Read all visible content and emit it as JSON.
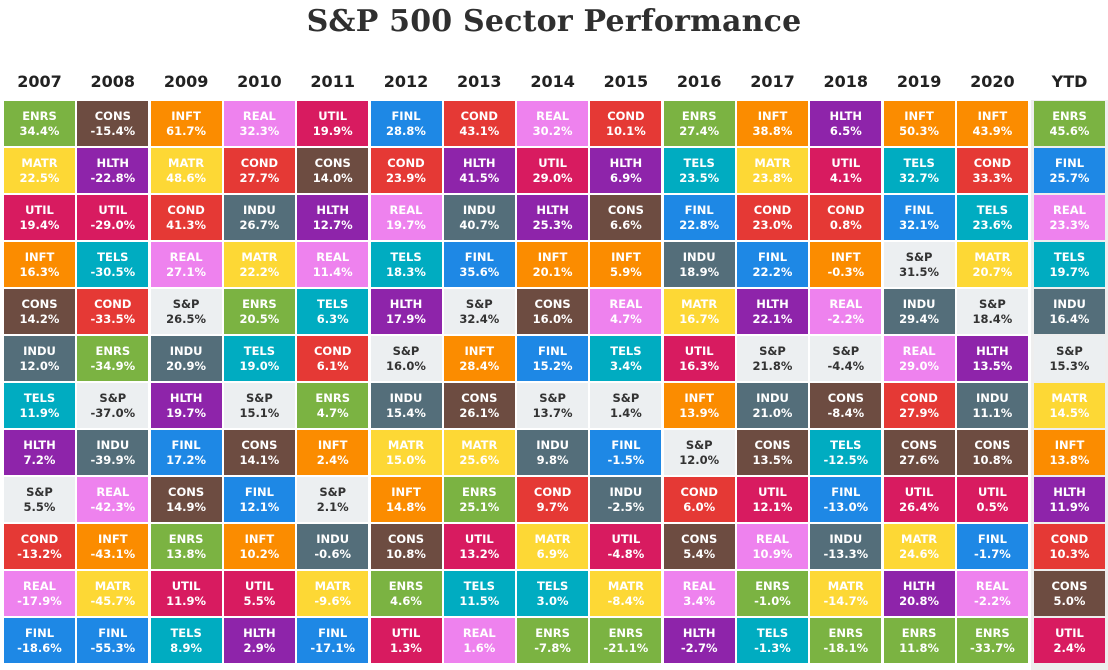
{
  "title": "S&P 500 Sector Performance",
  "colors": {
    "ENRS": "#7bb342",
    "CONS": "#6d4c41",
    "INFT": "#fb8c00",
    "REAL": "#ee82ee",
    "UTIL": "#d81b60",
    "FINL": "#1e88e5",
    "COND": "#e53935",
    "HLTH": "#8e24aa",
    "MATR": "#fdd835",
    "INDU": "#546e7a",
    "TELS": "#00acc1",
    "S&P": "#eceff1"
  },
  "chart_data": {
    "type": "table",
    "columns": [
      {
        "year": "2007",
        "cells": [
          {
            "sector": "ENRS",
            "value": "34.4%"
          },
          {
            "sector": "MATR",
            "value": "22.5%"
          },
          {
            "sector": "UTIL",
            "value": "19.4%"
          },
          {
            "sector": "INFT",
            "value": "16.3%"
          },
          {
            "sector": "CONS",
            "value": "14.2%"
          },
          {
            "sector": "INDU",
            "value": "12.0%"
          },
          {
            "sector": "TELS",
            "value": "11.9%"
          },
          {
            "sector": "HLTH",
            "value": "7.2%"
          },
          {
            "sector": "S&P",
            "value": "5.5%"
          },
          {
            "sector": "COND",
            "value": "-13.2%"
          },
          {
            "sector": "REAL",
            "value": "-17.9%"
          },
          {
            "sector": "FINL",
            "value": "-18.6%"
          }
        ]
      },
      {
        "year": "2008",
        "cells": [
          {
            "sector": "CONS",
            "value": "-15.4%"
          },
          {
            "sector": "HLTH",
            "value": "-22.8%"
          },
          {
            "sector": "UTIL",
            "value": "-29.0%"
          },
          {
            "sector": "TELS",
            "value": "-30.5%"
          },
          {
            "sector": "COND",
            "value": "-33.5%"
          },
          {
            "sector": "ENRS",
            "value": "-34.9%"
          },
          {
            "sector": "S&P",
            "value": "-37.0%"
          },
          {
            "sector": "INDU",
            "value": "-39.9%"
          },
          {
            "sector": "REAL",
            "value": "-42.3%"
          },
          {
            "sector": "INFT",
            "value": "-43.1%"
          },
          {
            "sector": "MATR",
            "value": "-45.7%"
          },
          {
            "sector": "FINL",
            "value": "-55.3%"
          }
        ]
      },
      {
        "year": "2009",
        "cells": [
          {
            "sector": "INFT",
            "value": "61.7%"
          },
          {
            "sector": "MATR",
            "value": "48.6%"
          },
          {
            "sector": "COND",
            "value": "41.3%"
          },
          {
            "sector": "REAL",
            "value": "27.1%"
          },
          {
            "sector": "S&P",
            "value": "26.5%"
          },
          {
            "sector": "INDU",
            "value": "20.9%"
          },
          {
            "sector": "HLTH",
            "value": "19.7%"
          },
          {
            "sector": "FINL",
            "value": "17.2%"
          },
          {
            "sector": "CONS",
            "value": "14.9%"
          },
          {
            "sector": "ENRS",
            "value": "13.8%"
          },
          {
            "sector": "UTIL",
            "value": "11.9%"
          },
          {
            "sector": "TELS",
            "value": "8.9%"
          }
        ]
      },
      {
        "year": "2010",
        "cells": [
          {
            "sector": "REAL",
            "value": "32.3%"
          },
          {
            "sector": "COND",
            "value": "27.7%"
          },
          {
            "sector": "INDU",
            "value": "26.7%"
          },
          {
            "sector": "MATR",
            "value": "22.2%"
          },
          {
            "sector": "ENRS",
            "value": "20.5%"
          },
          {
            "sector": "TELS",
            "value": "19.0%"
          },
          {
            "sector": "S&P",
            "value": "15.1%"
          },
          {
            "sector": "CONS",
            "value": "14.1%"
          },
          {
            "sector": "FINL",
            "value": "12.1%"
          },
          {
            "sector": "INFT",
            "value": "10.2%"
          },
          {
            "sector": "UTIL",
            "value": "5.5%"
          },
          {
            "sector": "HLTH",
            "value": "2.9%"
          }
        ]
      },
      {
        "year": "2011",
        "cells": [
          {
            "sector": "UTIL",
            "value": "19.9%"
          },
          {
            "sector": "CONS",
            "value": "14.0%"
          },
          {
            "sector": "HLTH",
            "value": "12.7%"
          },
          {
            "sector": "REAL",
            "value": "11.4%"
          },
          {
            "sector": "TELS",
            "value": "6.3%"
          },
          {
            "sector": "COND",
            "value": "6.1%"
          },
          {
            "sector": "ENRS",
            "value": "4.7%"
          },
          {
            "sector": "INFT",
            "value": "2.4%"
          },
          {
            "sector": "S&P",
            "value": "2.1%"
          },
          {
            "sector": "INDU",
            "value": "-0.6%"
          },
          {
            "sector": "MATR",
            "value": "-9.6%"
          },
          {
            "sector": "FINL",
            "value": "-17.1%"
          }
        ]
      },
      {
        "year": "2012",
        "cells": [
          {
            "sector": "FINL",
            "value": "28.8%"
          },
          {
            "sector": "COND",
            "value": "23.9%"
          },
          {
            "sector": "REAL",
            "value": "19.7%"
          },
          {
            "sector": "TELS",
            "value": "18.3%"
          },
          {
            "sector": "HLTH",
            "value": "17.9%"
          },
          {
            "sector": "S&P",
            "value": "16.0%"
          },
          {
            "sector": "INDU",
            "value": "15.4%"
          },
          {
            "sector": "MATR",
            "value": "15.0%"
          },
          {
            "sector": "INFT",
            "value": "14.8%"
          },
          {
            "sector": "CONS",
            "value": "10.8%"
          },
          {
            "sector": "ENRS",
            "value": "4.6%"
          },
          {
            "sector": "UTIL",
            "value": "1.3%"
          }
        ]
      },
      {
        "year": "2013",
        "cells": [
          {
            "sector": "COND",
            "value": "43.1%"
          },
          {
            "sector": "HLTH",
            "value": "41.5%"
          },
          {
            "sector": "INDU",
            "value": "40.7%"
          },
          {
            "sector": "FINL",
            "value": "35.6%"
          },
          {
            "sector": "S&P",
            "value": "32.4%"
          },
          {
            "sector": "INFT",
            "value": "28.4%"
          },
          {
            "sector": "CONS",
            "value": "26.1%"
          },
          {
            "sector": "MATR",
            "value": "25.6%"
          },
          {
            "sector": "ENRS",
            "value": "25.1%"
          },
          {
            "sector": "UTIL",
            "value": "13.2%"
          },
          {
            "sector": "TELS",
            "value": "11.5%"
          },
          {
            "sector": "REAL",
            "value": "1.6%"
          }
        ]
      },
      {
        "year": "2014",
        "cells": [
          {
            "sector": "REAL",
            "value": "30.2%"
          },
          {
            "sector": "UTIL",
            "value": "29.0%"
          },
          {
            "sector": "HLTH",
            "value": "25.3%"
          },
          {
            "sector": "INFT",
            "value": "20.1%"
          },
          {
            "sector": "CONS",
            "value": "16.0%"
          },
          {
            "sector": "FINL",
            "value": "15.2%"
          },
          {
            "sector": "S&P",
            "value": "13.7%"
          },
          {
            "sector": "INDU",
            "value": "9.8%"
          },
          {
            "sector": "COND",
            "value": "9.7%"
          },
          {
            "sector": "MATR",
            "value": "6.9%"
          },
          {
            "sector": "TELS",
            "value": "3.0%"
          },
          {
            "sector": "ENRS",
            "value": "-7.8%"
          }
        ]
      },
      {
        "year": "2015",
        "cells": [
          {
            "sector": "COND",
            "value": "10.1%"
          },
          {
            "sector": "HLTH",
            "value": "6.9%"
          },
          {
            "sector": "CONS",
            "value": "6.6%"
          },
          {
            "sector": "INFT",
            "value": "5.9%"
          },
          {
            "sector": "REAL",
            "value": "4.7%"
          },
          {
            "sector": "TELS",
            "value": "3.4%"
          },
          {
            "sector": "S&P",
            "value": "1.4%"
          },
          {
            "sector": "FINL",
            "value": "-1.5%"
          },
          {
            "sector": "INDU",
            "value": "-2.5%"
          },
          {
            "sector": "UTIL",
            "value": "-4.8%"
          },
          {
            "sector": "MATR",
            "value": "-8.4%"
          },
          {
            "sector": "ENRS",
            "value": "-21.1%"
          }
        ]
      },
      {
        "year": "2016",
        "cells": [
          {
            "sector": "ENRS",
            "value": "27.4%"
          },
          {
            "sector": "TELS",
            "value": "23.5%"
          },
          {
            "sector": "FINL",
            "value": "22.8%"
          },
          {
            "sector": "INDU",
            "value": "18.9%"
          },
          {
            "sector": "MATR",
            "value": "16.7%"
          },
          {
            "sector": "UTIL",
            "value": "16.3%"
          },
          {
            "sector": "INFT",
            "value": "13.9%"
          },
          {
            "sector": "S&P",
            "value": "12.0%"
          },
          {
            "sector": "COND",
            "value": "6.0%"
          },
          {
            "sector": "CONS",
            "value": "5.4%"
          },
          {
            "sector": "REAL",
            "value": "3.4%"
          },
          {
            "sector": "HLTH",
            "value": "-2.7%"
          }
        ]
      },
      {
        "year": "2017",
        "cells": [
          {
            "sector": "INFT",
            "value": "38.8%"
          },
          {
            "sector": "MATR",
            "value": "23.8%"
          },
          {
            "sector": "COND",
            "value": "23.0%"
          },
          {
            "sector": "FINL",
            "value": "22.2%"
          },
          {
            "sector": "HLTH",
            "value": "22.1%"
          },
          {
            "sector": "S&P",
            "value": "21.8%"
          },
          {
            "sector": "INDU",
            "value": "21.0%"
          },
          {
            "sector": "CONS",
            "value": "13.5%"
          },
          {
            "sector": "UTIL",
            "value": "12.1%"
          },
          {
            "sector": "REAL",
            "value": "10.9%"
          },
          {
            "sector": "ENRS",
            "value": "-1.0%"
          },
          {
            "sector": "TELS",
            "value": "-1.3%"
          }
        ]
      },
      {
        "year": "2018",
        "cells": [
          {
            "sector": "HLTH",
            "value": "6.5%"
          },
          {
            "sector": "UTIL",
            "value": "4.1%"
          },
          {
            "sector": "COND",
            "value": "0.8%"
          },
          {
            "sector": "INFT",
            "value": "-0.3%"
          },
          {
            "sector": "REAL",
            "value": "-2.2%"
          },
          {
            "sector": "S&P",
            "value": "-4.4%"
          },
          {
            "sector": "CONS",
            "value": "-8.4%"
          },
          {
            "sector": "TELS",
            "value": "-12.5%"
          },
          {
            "sector": "FINL",
            "value": "-13.0%"
          },
          {
            "sector": "INDU",
            "value": "-13.3%"
          },
          {
            "sector": "MATR",
            "value": "-14.7%"
          },
          {
            "sector": "ENRS",
            "value": "-18.1%"
          }
        ]
      },
      {
        "year": "2019",
        "cells": [
          {
            "sector": "INFT",
            "value": "50.3%"
          },
          {
            "sector": "TELS",
            "value": "32.7%"
          },
          {
            "sector": "FINL",
            "value": "32.1%"
          },
          {
            "sector": "S&P",
            "value": "31.5%"
          },
          {
            "sector": "INDU",
            "value": "29.4%"
          },
          {
            "sector": "REAL",
            "value": "29.0%"
          },
          {
            "sector": "COND",
            "value": "27.9%"
          },
          {
            "sector": "CONS",
            "value": "27.6%"
          },
          {
            "sector": "UTIL",
            "value": "26.4%"
          },
          {
            "sector": "MATR",
            "value": "24.6%"
          },
          {
            "sector": "HLTH",
            "value": "20.8%"
          },
          {
            "sector": "ENRS",
            "value": "11.8%"
          }
        ]
      },
      {
        "year": "2020",
        "cells": [
          {
            "sector": "INFT",
            "value": "43.9%"
          },
          {
            "sector": "COND",
            "value": "33.3%"
          },
          {
            "sector": "TELS",
            "value": "23.6%"
          },
          {
            "sector": "MATR",
            "value": "20.7%"
          },
          {
            "sector": "S&P",
            "value": "18.4%"
          },
          {
            "sector": "HLTH",
            "value": "13.5%"
          },
          {
            "sector": "INDU",
            "value": "11.1%"
          },
          {
            "sector": "CONS",
            "value": "10.8%"
          },
          {
            "sector": "UTIL",
            "value": "0.5%"
          },
          {
            "sector": "FINL",
            "value": "-1.7%"
          },
          {
            "sector": "REAL",
            "value": "-2.2%"
          },
          {
            "sector": "ENRS",
            "value": "-33.7%"
          }
        ]
      },
      {
        "year": "YTD",
        "cells": [
          {
            "sector": "ENRS",
            "value": "45.6%"
          },
          {
            "sector": "FINL",
            "value": "25.7%"
          },
          {
            "sector": "REAL",
            "value": "23.3%"
          },
          {
            "sector": "TELS",
            "value": "19.7%"
          },
          {
            "sector": "INDU",
            "value": "16.4%"
          },
          {
            "sector": "S&P",
            "value": "15.3%"
          },
          {
            "sector": "MATR",
            "value": "14.5%"
          },
          {
            "sector": "INFT",
            "value": "13.8%"
          },
          {
            "sector": "HLTH",
            "value": "11.9%"
          },
          {
            "sector": "COND",
            "value": "10.3%"
          },
          {
            "sector": "CONS",
            "value": "5.0%"
          },
          {
            "sector": "UTIL",
            "value": "2.4%"
          }
        ]
      }
    ]
  }
}
